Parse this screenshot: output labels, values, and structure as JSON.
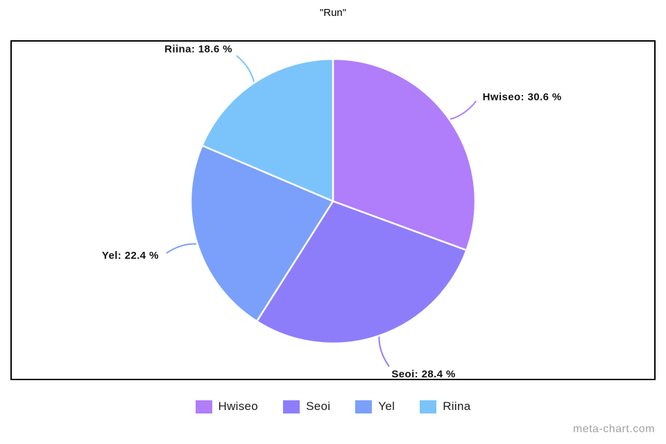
{
  "title": "\"Run\"",
  "watermark": "meta-chart.com",
  "chart_data": {
    "type": "pie",
    "title": "\"Run\"",
    "categories": [
      "Hwiseo",
      "Seoi",
      "Yel",
      "Riina"
    ],
    "values": [
      30.6,
      28.4,
      22.4,
      18.6
    ],
    "unit": "%",
    "colors": [
      "#b07dfb",
      "#8e7dfb",
      "#7aa0fb",
      "#7bc4fb"
    ],
    "slice_labels": [
      "Hwiseo: 30.6 %",
      "Seoi: 28.4 %",
      "Yel: 22.4 %",
      "Riina: 18.6 %"
    ],
    "start_angle_deg": 0,
    "direction": "clockwise",
    "separator_color": "#ffffff",
    "legend_position": "bottom",
    "legend_items": [
      "Hwiseo",
      "Seoi",
      "Yel",
      "Riina"
    ]
  }
}
